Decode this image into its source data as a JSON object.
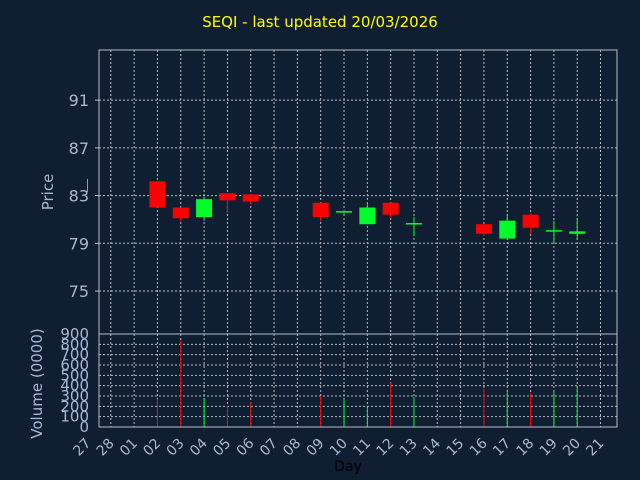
{
  "chart_data": {
    "type": "candlestick",
    "title": "SEQI - last updated 20/03/2026",
    "xlabel": "Day",
    "price_panel": {
      "ylabel": "Price",
      "ylim": [
        71.4,
        95.2
      ],
      "yticks": [
        75,
        79,
        83,
        87,
        91
      ],
      "grid": true
    },
    "volume_panel": {
      "ylabel": "Volume (0000)",
      "ylim": [
        0,
        900
      ],
      "yticks": [
        0,
        100,
        200,
        300,
        400,
        500,
        600,
        700,
        800,
        900
      ],
      "grid": true
    },
    "x_ticks": [
      "27",
      "28",
      "01",
      "02",
      "03",
      "04",
      "05",
      "06",
      "07",
      "08",
      "09",
      "10",
      "11",
      "12",
      "13",
      "14",
      "15",
      "16",
      "17",
      "18",
      "19",
      "20",
      "21"
    ],
    "candles": [
      {
        "day": "27",
        "open": 83.3,
        "high": 84.4,
        "low": 83.3,
        "close": 84.4,
        "volume": null
      },
      {
        "day": "02",
        "open": 84.2,
        "high": 84.2,
        "low": 82.0,
        "close": 82.0,
        "volume": 270
      },
      {
        "day": "03",
        "open": 82.0,
        "high": 82.0,
        "low": 80.8,
        "close": 81.1,
        "volume": 840
      },
      {
        "day": "04",
        "open": 81.2,
        "high": 82.9,
        "low": 80.9,
        "close": 82.7,
        "volume": 280
      },
      {
        "day": "05",
        "open": 83.2,
        "high": 83.2,
        "low": 81.5,
        "close": 82.6,
        "volume": 200
      },
      {
        "day": "06",
        "open": 83.1,
        "high": 83.1,
        "low": 82.2,
        "close": 82.5,
        "volume": 240
      },
      {
        "day": "09",
        "open": 82.4,
        "high": 82.4,
        "low": 80.8,
        "close": 81.2,
        "volume": 300
      },
      {
        "day": "10",
        "open": 81.7,
        "high": 81.8,
        "low": 81.5,
        "close": 81.7,
        "volume": 270
      },
      {
        "day": "11",
        "open": 80.6,
        "high": 82.3,
        "low": 80.6,
        "close": 82.0,
        "volume": 190
      },
      {
        "day": "12",
        "open": 82.4,
        "high": 82.4,
        "low": 81.1,
        "close": 81.4,
        "volume": 430
      },
      {
        "day": "13",
        "open": 80.6,
        "high": 81.2,
        "low": 79.6,
        "close": 80.7,
        "volume": 290
      },
      {
        "day": "16",
        "open": 80.6,
        "high": 80.6,
        "low": 79.6,
        "close": 79.8,
        "volume": 370
      },
      {
        "day": "17",
        "open": 79.4,
        "high": 81.3,
        "low": 79.4,
        "close": 80.9,
        "volume": 340
      },
      {
        "day": "18",
        "open": 81.4,
        "high": 81.5,
        "low": 79.8,
        "close": 80.3,
        "volume": 330
      },
      {
        "day": "19",
        "open": 80.0,
        "high": 80.9,
        "low": 79.1,
        "close": 80.1,
        "volume": 340
      },
      {
        "day": "20",
        "open": 79.8,
        "high": 81.1,
        "low": 79.3,
        "close": 80.0,
        "volume": 390
      }
    ],
    "colors": {
      "background": "#0f1e30",
      "grid": "#b8bcc4",
      "axis_text": "#a7b9d1",
      "title": "#ffff00",
      "up": "#00ff2a",
      "down": "#ff0000"
    }
  }
}
